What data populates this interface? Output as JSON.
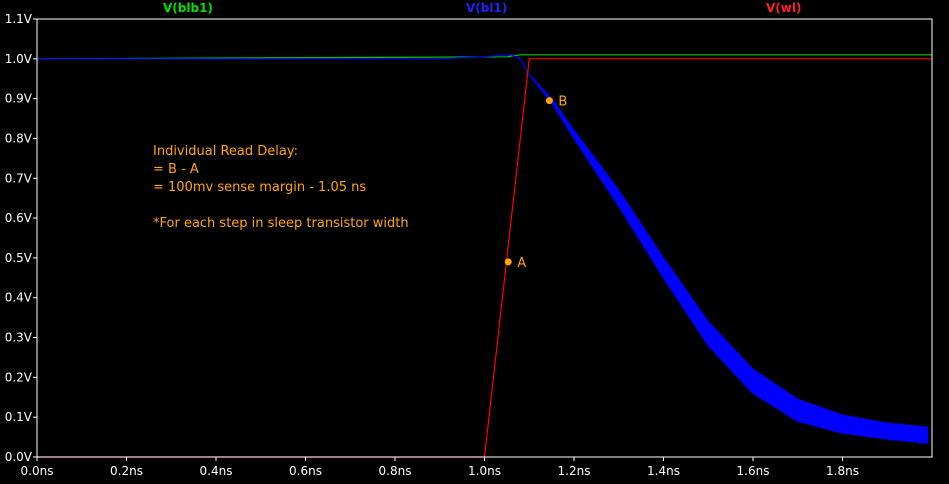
{
  "chart_data": {
    "type": "line",
    "background": "#000000",
    "axis_color": "#ffffff",
    "xlim": [
      0,
      2.0
    ],
    "ylim": [
      0,
      1.1
    ],
    "x_ticks": [
      "0.0ns",
      "0.2ns",
      "0.4ns",
      "0.6ns",
      "0.8ns",
      "1.0ns",
      "1.2ns",
      "1.4ns",
      "1.6ns",
      "1.8ns"
    ],
    "x_tick_values": [
      0,
      0.2,
      0.4,
      0.6,
      0.8,
      1.0,
      1.2,
      1.4,
      1.6,
      1.8
    ],
    "y_ticks": [
      "0.0V",
      "0.1V",
      "0.2V",
      "0.3V",
      "0.4V",
      "0.5V",
      "0.6V",
      "0.7V",
      "0.8V",
      "0.9V",
      "1.0V",
      "1.1V"
    ],
    "y_tick_values": [
      0,
      0.1,
      0.2,
      0.3,
      0.4,
      0.5,
      0.6,
      0.7,
      0.8,
      0.9,
      1.0,
      1.1
    ],
    "series": [
      {
        "name": "V(blb1)",
        "color": "#00c800",
        "x": [
          0,
          1.05,
          1.08,
          1.1,
          2.0
        ],
        "y": [
          1.0,
          1.005,
          1.01,
          1.01,
          1.01
        ]
      },
      {
        "name": "V(bl1)",
        "color": "#0000ff",
        "band": true,
        "x": [
          0,
          0.9,
          0.95,
          1.0,
          1.03,
          1.06,
          1.08,
          1.1,
          1.15,
          1.2,
          1.3,
          1.4,
          1.5,
          1.6,
          1.7,
          1.8,
          1.9,
          1.99
        ],
        "y_upper": [
          1.0,
          1.0,
          1.003,
          1.005,
          1.008,
          1.01,
          1.0,
          0.96,
          0.9,
          0.82,
          0.67,
          0.5,
          0.34,
          0.22,
          0.145,
          0.105,
          0.085,
          0.075
        ],
        "y_lower": [
          1.0,
          1.0,
          1.003,
          1.005,
          1.008,
          1.01,
          1.0,
          0.96,
          0.89,
          0.8,
          0.63,
          0.45,
          0.28,
          0.16,
          0.09,
          0.06,
          0.045,
          0.035
        ]
      },
      {
        "name": "V(wl)",
        "color": "#ff0000",
        "x": [
          0,
          1.0,
          1.05,
          1.1,
          2.0
        ],
        "y": [
          0,
          0,
          0.5,
          1.0,
          1.0
        ]
      }
    ],
    "markers": [
      {
        "label": "A",
        "x": 1.053,
        "y": 0.49,
        "color": "#ffa500"
      },
      {
        "label": "B",
        "x": 1.145,
        "y": 0.895,
        "color": "#ffa500"
      }
    ],
    "annotations": {
      "line1": "Individual Read Delay:",
      "line2": "= B - A",
      "line3": "= 100mv sense margin - 1.05 ns",
      "line4": "*For each step in sleep transistor width"
    }
  }
}
